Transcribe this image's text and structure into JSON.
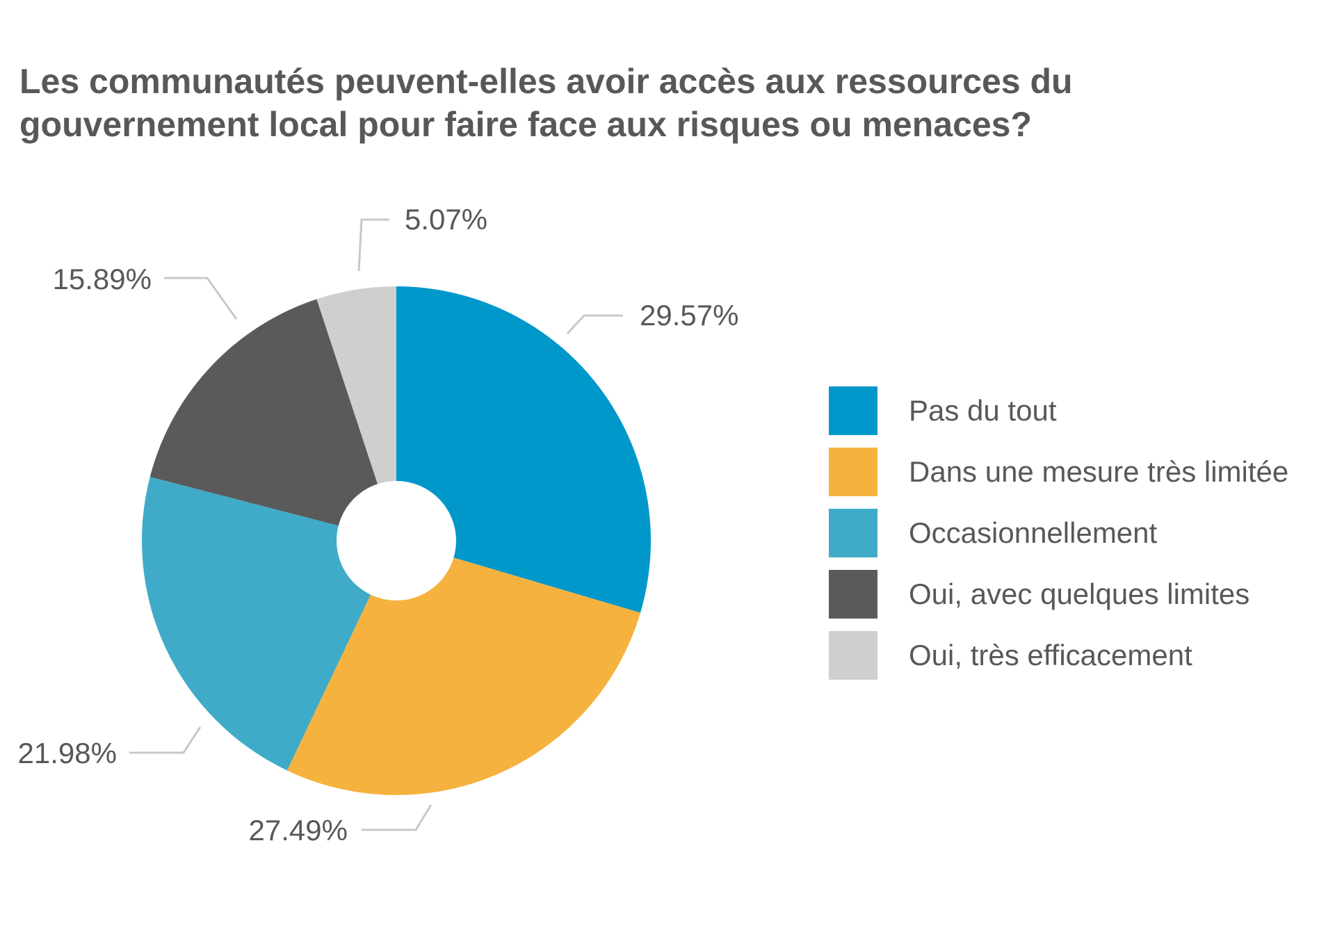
{
  "chart_data": {
    "type": "pie",
    "donut": true,
    "title": "Les communautés peuvent-elles avoir accès aux ressources du\ngouvernement local pour faire face aux risques ou menaces?",
    "legend_position": "right",
    "slices": [
      {
        "name": "Pas du tout",
        "value": 29.57,
        "label": "29.57%",
        "color": "#0098cb"
      },
      {
        "name": "Dans une mesure très limitée",
        "value": 27.49,
        "label": "27.49%",
        "color": "#f6b23e"
      },
      {
        "name": "Occasionnellement",
        "value": 21.98,
        "label": "21.98%",
        "color": "#40abc8"
      },
      {
        "name": "Oui, avec quelques limites",
        "value": 15.89,
        "label": "15.89%",
        "color": "#5a5a5b"
      },
      {
        "name": "Oui, très efficacement",
        "value": 5.07,
        "label": "5.07%",
        "color": "#cfcfcf"
      }
    ],
    "leader_line_color": "#c8c8c8"
  }
}
